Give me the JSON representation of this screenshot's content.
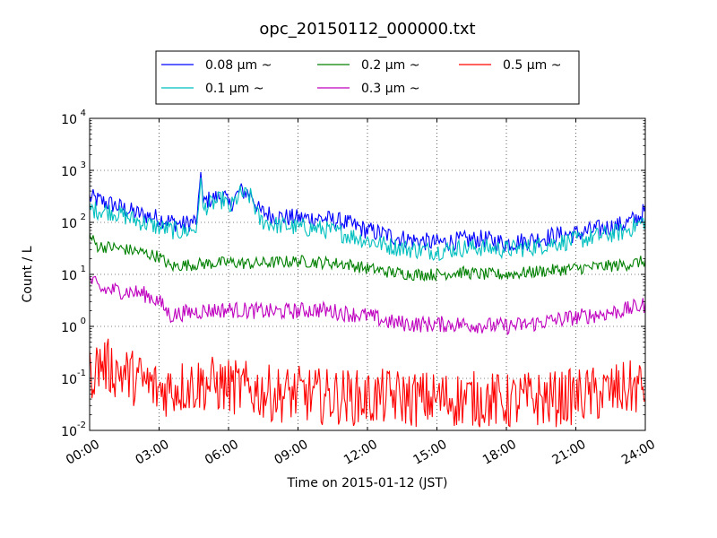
{
  "chart_data": {
    "type": "line",
    "title": "opc_20150112_000000.txt",
    "xlabel": "Time on 2015-01-12 (JST)",
    "ylabel": "Count / L",
    "yscale": "log",
    "ylim": [
      0.01,
      10000
    ],
    "xlim": [
      "00:00",
      "24:00"
    ],
    "x_ticks": [
      "00:00",
      "03:00",
      "06:00",
      "09:00",
      "12:00",
      "15:00",
      "18:00",
      "21:00",
      "24:00"
    ],
    "y_ticks": [
      {
        "base": "10",
        "exp": "-2"
      },
      {
        "base": "10",
        "exp": "-1"
      },
      {
        "base": "10",
        "exp": "0"
      },
      {
        "base": "10",
        "exp": "1"
      },
      {
        "base": "10",
        "exp": "2"
      },
      {
        "base": "10",
        "exp": "3"
      },
      {
        "base": "10",
        "exp": "4"
      }
    ],
    "grid": true,
    "legend_position": "top-center",
    "legend_columns": 3,
    "series": [
      {
        "name": "0.08 μm ~",
        "color": "#0000ff",
        "noise": 0.18,
        "x": [
          "00:00",
          "01:00",
          "02:00",
          "03:00",
          "04:00",
          "04:40",
          "04:48",
          "04:54",
          "05:00",
          "05:30",
          "05:50",
          "06:00",
          "06:30",
          "06:45",
          "07:00",
          "07:20",
          "07:40",
          "08:00",
          "09:00",
          "10:00",
          "11:00",
          "12:00",
          "13:00",
          "14:00",
          "15:00",
          "16:00",
          "17:00",
          "18:00",
          "19:00",
          "20:00",
          "21:00",
          "22:00",
          "23:00",
          "23:40",
          "24:00"
        ],
        "y": [
          300,
          220,
          150,
          120,
          90,
          110,
          1200,
          200,
          260,
          300,
          320,
          200,
          400,
          380,
          350,
          160,
          150,
          130,
          120,
          120,
          100,
          70,
          55,
          45,
          40,
          45,
          48,
          40,
          45,
          55,
          60,
          75,
          90,
          120,
          170
        ]
      },
      {
        "name": "0.1 μm ~",
        "color": "#00bfbf",
        "noise": 0.18,
        "x": [
          "00:00",
          "01:00",
          "02:00",
          "03:00",
          "04:00",
          "04:40",
          "04:48",
          "04:54",
          "05:00",
          "05:30",
          "05:50",
          "06:00",
          "06:30",
          "06:45",
          "07:00",
          "07:20",
          "07:40",
          "08:00",
          "09:00",
          "10:00",
          "11:00",
          "12:00",
          "13:00",
          "14:00",
          "15:00",
          "16:00",
          "17:00",
          "18:00",
          "19:00",
          "20:00",
          "21:00",
          "22:00",
          "23:00",
          "23:40",
          "24:00"
        ],
        "y": [
          180,
          160,
          110,
          80,
          65,
          80,
          1000,
          150,
          200,
          250,
          280,
          170,
          350,
          330,
          300,
          110,
          100,
          90,
          80,
          75,
          60,
          45,
          35,
          30,
          28,
          32,
          33,
          30,
          33,
          40,
          45,
          55,
          65,
          90,
          110
        ]
      },
      {
        "name": "0.2 μm ~",
        "color": "#008000",
        "noise": 0.12,
        "x": [
          "00:00",
          "00:20",
          "01:00",
          "02:00",
          "03:00",
          "03:30",
          "04:00",
          "05:00",
          "06:00",
          "07:00",
          "08:00",
          "09:00",
          "10:00",
          "11:00",
          "12:00",
          "13:00",
          "14:00",
          "15:00",
          "16:00",
          "17:00",
          "18:00",
          "19:00",
          "20:00",
          "21:00",
          "22:00",
          "23:00",
          "24:00"
        ],
        "y": [
          55,
          35,
          33,
          28,
          22,
          14,
          15,
          16,
          17,
          16,
          17,
          18,
          17,
          16,
          13,
          11,
          10,
          10,
          11,
          10,
          10,
          11,
          12,
          13,
          14,
          15,
          18
        ]
      },
      {
        "name": "0.3 μm ~",
        "color": "#bf00bf",
        "noise": 0.16,
        "x": [
          "00:00",
          "00:30",
          "01:00",
          "02:00",
          "02:30",
          "03:00",
          "03:30",
          "04:00",
          "05:00",
          "06:00",
          "07:00",
          "08:00",
          "09:00",
          "10:00",
          "11:00",
          "12:00",
          "13:00",
          "14:00",
          "15:00",
          "16:00",
          "17:00",
          "18:00",
          "19:00",
          "20:00",
          "21:00",
          "22:00",
          "23:00",
          "24:00"
        ],
        "y": [
          8,
          5,
          5,
          4.5,
          4,
          3,
          1.6,
          1.8,
          2,
          2.1,
          2,
          1.9,
          2,
          2.1,
          1.8,
          1.6,
          1.2,
          1.1,
          1.1,
          1.1,
          1.05,
          1,
          1.1,
          1.3,
          1.5,
          1.7,
          2,
          2.6
        ]
      },
      {
        "name": "0.5 μm ~",
        "color": "#ff0000",
        "noise": 0.55,
        "x": [
          "00:00",
          "00:30",
          "01:00",
          "02:00",
          "03:00",
          "04:00",
          "05:00",
          "06:00",
          "07:00",
          "08:00",
          "09:00",
          "10:00",
          "11:00",
          "12:00",
          "13:00",
          "14:00",
          "15:00",
          "16:00",
          "17:00",
          "18:00",
          "19:00",
          "20:00",
          "21:00",
          "22:00",
          "23:00",
          "24:00"
        ],
        "y": [
          0.12,
          0.2,
          0.15,
          0.1,
          0.06,
          0.07,
          0.08,
          0.07,
          0.06,
          0.05,
          0.05,
          0.045,
          0.045,
          0.04,
          0.045,
          0.04,
          0.04,
          0.04,
          0.04,
          0.035,
          0.04,
          0.04,
          0.045,
          0.05,
          0.06,
          0.07
        ]
      }
    ]
  }
}
